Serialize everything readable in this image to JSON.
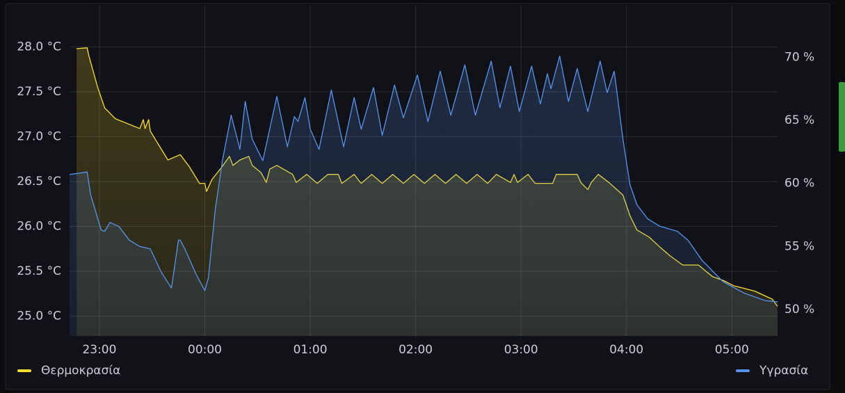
{
  "chart_data": {
    "type": "line",
    "xlim": [
      "22:43",
      "05:26"
    ],
    "xticks": [
      "23:00",
      "00:00",
      "01:00",
      "02:00",
      "03:00",
      "04:00",
      "05:00"
    ],
    "ylim": [
      24.78,
      28.46
    ],
    "yticks": [
      {
        "value": 25.0,
        "label": "25.0 °C"
      },
      {
        "value": 25.5,
        "label": "25.5 °C"
      },
      {
        "value": 26.0,
        "label": "26.0 °C"
      },
      {
        "value": 26.5,
        "label": "26.5 °C"
      },
      {
        "value": 27.0,
        "label": "27.0 °C"
      },
      {
        "value": 27.5,
        "label": "27.5 °C"
      },
      {
        "value": 28.0,
        "label": "28.0 °C"
      }
    ],
    "y2lim": [
      47.9,
      74.1
    ],
    "y2ticks": [
      {
        "value": 50,
        "label": "50 %"
      },
      {
        "value": 55,
        "label": "55 %"
      },
      {
        "value": 60,
        "label": "60 %"
      },
      {
        "value": 65,
        "label": "65 %"
      },
      {
        "value": 70,
        "label": "70 %"
      }
    ],
    "grid": true,
    "series": [
      {
        "name": "Θερμοκρασία",
        "color": "#FADE2A",
        "axis": "y",
        "x": [
          "22:47",
          "22:53",
          "22:54",
          "22:59",
          "23:03",
          "23:09",
          "23:23",
          "23:25",
          "23:26",
          "23:28",
          "23:29",
          "23:39",
          "23:46",
          "23:51",
          "23:57",
          "00:00",
          "00:01",
          "00:04",
          "00:10",
          "00:14",
          "00:16",
          "00:20",
          "00:25",
          "00:27",
          "00:32",
          "00:35",
          "00:37",
          "00:41",
          "00:50",
          "00:52",
          "00:58",
          "01:04",
          "01:10",
          "01:16",
          "01:18",
          "01:25",
          "01:29",
          "01:35",
          "01:41",
          "01:47",
          "01:53",
          "01:59",
          "02:05",
          "02:11",
          "02:17",
          "02:23",
          "02:29",
          "02:35",
          "02:41",
          "02:46",
          "02:54",
          "02:56",
          "02:58",
          "03:04",
          "03:08",
          "03:18",
          "03:20",
          "03:32",
          "03:34",
          "03:38",
          "03:40",
          "03:44",
          "03:50",
          "03:58",
          "04:02",
          "04:06",
          "04:13",
          "04:19",
          "04:25",
          "04:32",
          "04:41",
          "04:49",
          "04:55",
          "05:01",
          "05:13",
          "05:23",
          "05:26"
        ],
        "values": [
          27.98,
          27.99,
          27.9,
          27.55,
          27.32,
          27.2,
          27.09,
          27.19,
          27.09,
          27.19,
          27.06,
          26.74,
          26.8,
          26.67,
          26.48,
          26.48,
          26.39,
          26.52,
          26.67,
          26.78,
          26.68,
          26.74,
          26.78,
          26.68,
          26.6,
          26.49,
          26.64,
          26.68,
          26.58,
          26.49,
          26.58,
          26.48,
          26.58,
          26.58,
          26.48,
          26.58,
          26.48,
          26.58,
          26.48,
          26.58,
          26.48,
          26.58,
          26.48,
          26.58,
          26.48,
          26.58,
          26.48,
          26.58,
          26.48,
          26.58,
          26.49,
          26.58,
          26.49,
          26.58,
          26.48,
          26.48,
          26.58,
          26.58,
          26.49,
          26.41,
          26.49,
          26.58,
          26.49,
          26.35,
          26.12,
          25.96,
          25.88,
          25.77,
          25.67,
          25.57,
          25.57,
          25.44,
          25.4,
          25.34,
          25.28,
          25.19,
          25.11
        ]
      },
      {
        "name": "Υγρασία",
        "color": "#5794F2",
        "axis": "y2",
        "x": [
          "22:43",
          "22:53",
          "22:55",
          "23:01",
          "23:03",
          "23:06",
          "23:11",
          "23:17",
          "23:23",
          "23:29",
          "23:35",
          "23:41",
          "23:45",
          "23:46",
          "23:49",
          "23:55",
          "00:00",
          "00:02",
          "00:06",
          "00:10",
          "00:15",
          "00:20",
          "00:23",
          "00:27",
          "00:33",
          "00:41",
          "00:47",
          "00:51",
          "00:53",
          "00:57",
          "01:00",
          "01:05",
          "01:12",
          "01:19",
          "01:25",
          "01:29",
          "01:36",
          "01:41",
          "01:48",
          "01:53",
          "02:01",
          "02:07",
          "02:14",
          "02:20",
          "02:28",
          "02:34",
          "02:43",
          "02:48",
          "02:54",
          "02:59",
          "03:06",
          "03:11",
          "03:15",
          "03:17",
          "03:22",
          "03:27",
          "03:32",
          "03:38",
          "03:45",
          "03:49",
          "03:53",
          "03:55",
          "03:58",
          "04:02",
          "04:06",
          "04:12",
          "04:19",
          "04:29",
          "04:35",
          "04:43",
          "04:55",
          "05:07",
          "05:19",
          "05:26"
        ],
        "values": [
          60.7,
          60.9,
          59.1,
          56.3,
          56.2,
          56.9,
          56.6,
          55.5,
          55.0,
          54.8,
          53.0,
          51.7,
          55.5,
          55.5,
          54.7,
          52.8,
          51.5,
          52.5,
          58.0,
          61.8,
          65.4,
          62.7,
          66.5,
          63.5,
          61.8,
          66.9,
          62.9,
          65.3,
          64.9,
          66.8,
          64.3,
          62.7,
          67.4,
          62.9,
          66.8,
          64.3,
          67.6,
          63.8,
          67.8,
          65.2,
          68.6,
          64.9,
          68.9,
          65.4,
          69.4,
          65.4,
          69.7,
          66.0,
          69.3,
          65.7,
          69.3,
          66.3,
          68.7,
          67.5,
          70.1,
          66.5,
          69.1,
          65.7,
          69.7,
          67.2,
          68.9,
          66.8,
          63.5,
          59.9,
          58.3,
          57.2,
          56.6,
          56.2,
          55.5,
          53.9,
          52.2,
          51.3,
          50.7,
          50.6
        ]
      }
    ]
  }
}
